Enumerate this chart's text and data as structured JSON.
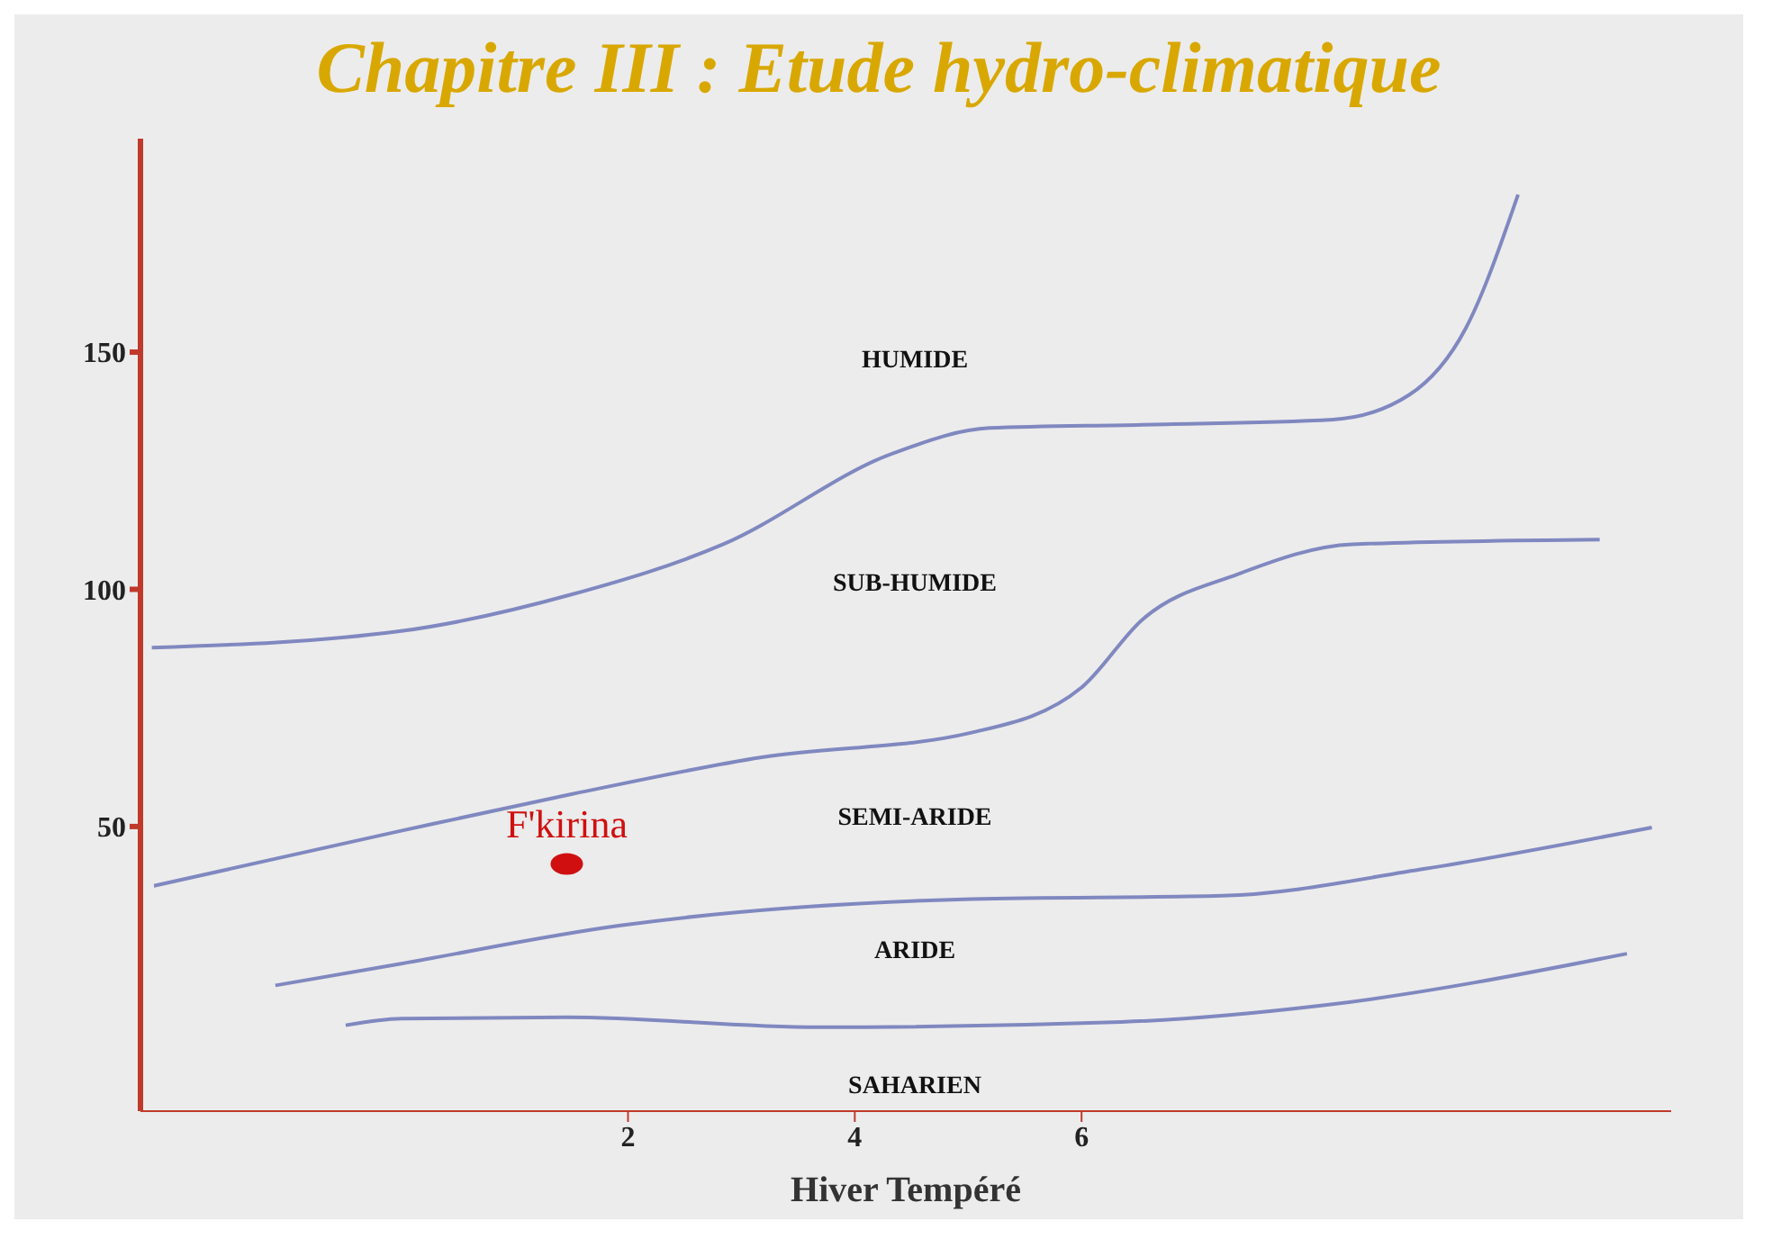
{
  "chart_data": {
    "type": "line",
    "title": "Chapitre III : Etude hydro-climatique",
    "xlabel": "Hiver Tempéré",
    "xlim": [
      -2.3,
      11.2
    ],
    "xticks": [
      2,
      4,
      6
    ],
    "ylim": [
      -10,
      195
    ],
    "yticks": [
      50,
      100,
      150
    ],
    "grid": false,
    "marker": "none",
    "line_style": "solid",
    "series": [
      {
        "color": "#8088c0",
        "x": [
          -2.2,
          0,
          1.5,
          2.84,
          4.35,
          5.19,
          6.54,
          8.22,
          8.89,
          9.39,
          9.85
        ],
        "values": [
          87.7,
          91.2,
          98.9,
          109.5,
          128.8,
          134,
          134.7,
          135.8,
          141,
          155.1,
          183.2
        ]
      },
      {
        "color": "#8088c0",
        "x": [
          -2.18,
          0,
          1.5,
          3.18,
          5.03,
          6,
          6.54,
          7.38,
          8.39,
          10.57
        ],
        "values": [
          37.5,
          49.1,
          56.8,
          64.6,
          69.8,
          79.3,
          93.7,
          103.2,
          109.5,
          110.5
        ]
      },
      {
        "color": "#8088c0",
        "x": [
          -1.11,
          0,
          1.92,
          5.03,
          7.24,
          9.03,
          11.03
        ],
        "values": [
          16.5,
          21.1,
          29.1,
          34.7,
          35.4,
          41.1,
          49.8
        ]
      },
      {
        "color": "#8088c0",
        "x": [
          -0.49,
          0,
          1.46,
          3.68,
          6.35,
          8.13,
          10.81
        ],
        "values": [
          8.1,
          9.5,
          9.8,
          7.7,
          8.8,
          12.3,
          23.2
        ]
      },
      {
        "type": "scatter",
        "name": "F'kirina",
        "color": "#d01010",
        "marker": "circle",
        "x": [
          1.46
        ],
        "values": [
          42.1
        ]
      }
    ],
    "annotations": [
      "HUMIDE",
      "SUB-HUMIDE",
      "SEMI-ARIDE",
      "ARIDE",
      "SAHARIEN"
    ]
  }
}
